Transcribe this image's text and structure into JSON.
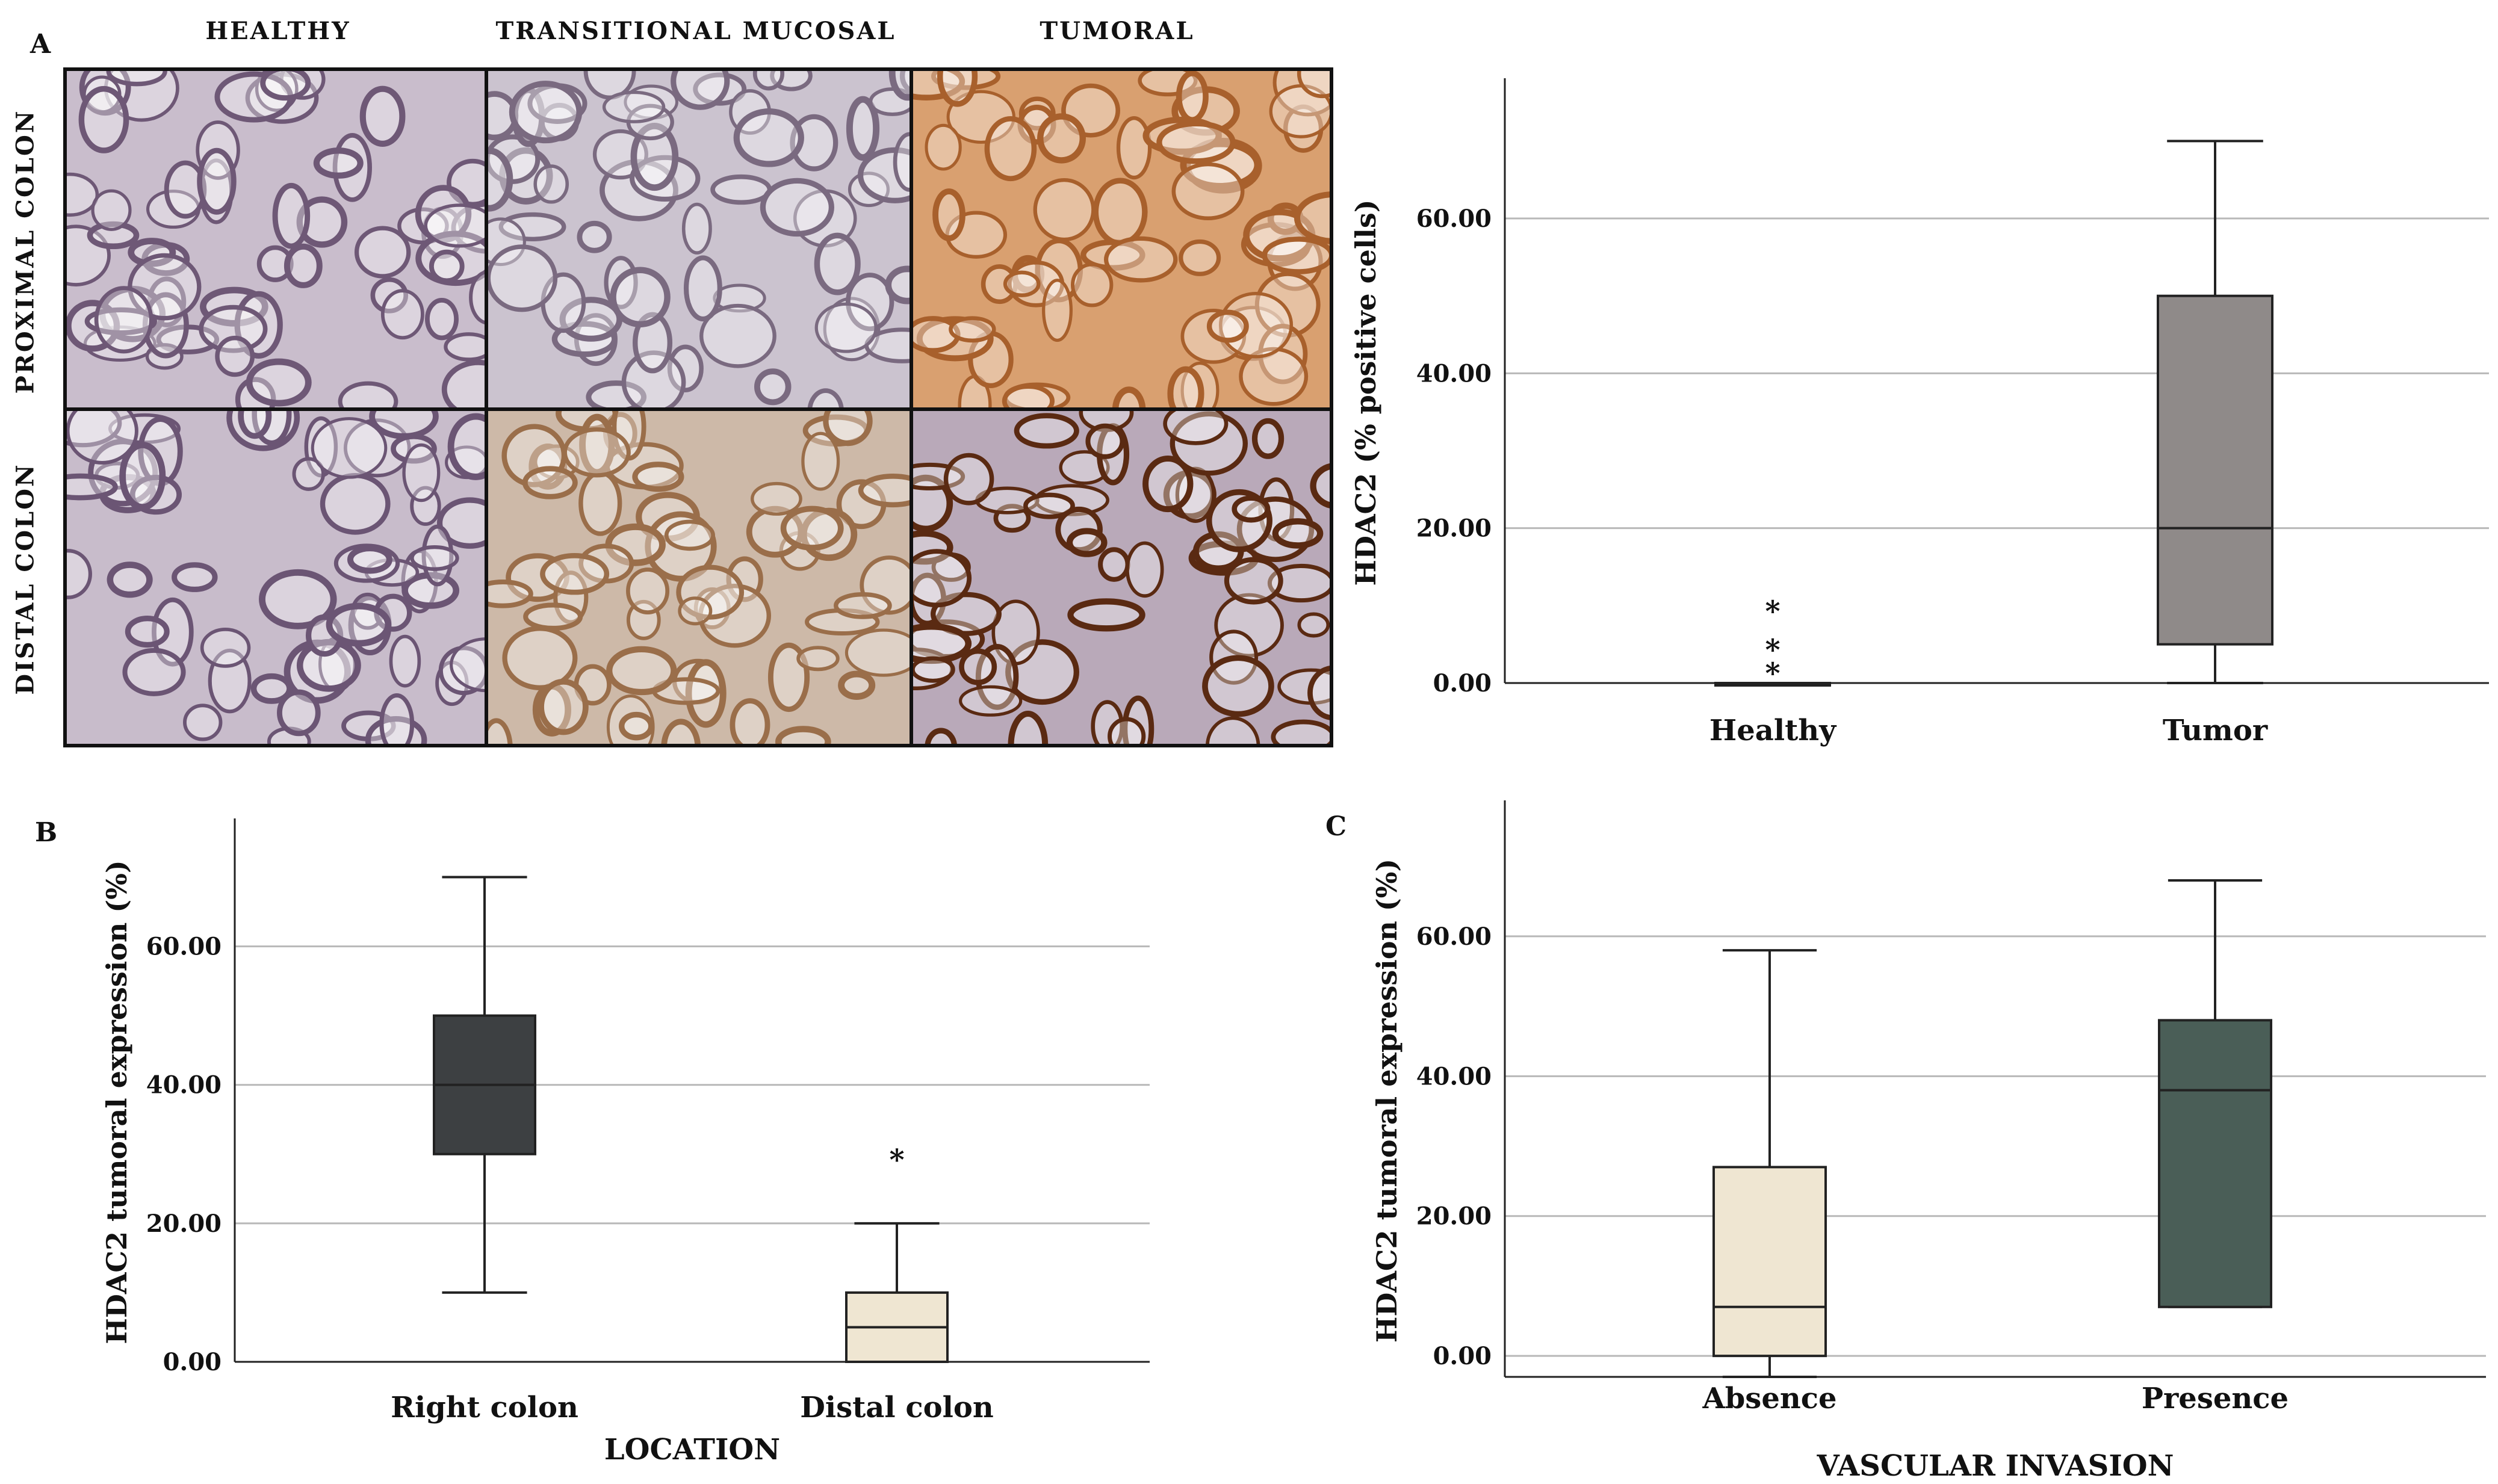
{
  "panel_letters": {
    "a": "A",
    "b": "B",
    "c": "C"
  },
  "micrographs": {
    "columns": [
      "HEALTHY",
      "TRANSITIONAL MUCOSAL",
      "TUMORAL"
    ],
    "rows": [
      "PROXIMAL COLON",
      "DISTAL COLON"
    ],
    "tiles": [
      {
        "row": 0,
        "col": 0,
        "tone": "#c9bdcc",
        "dark": "#6e5876"
      },
      {
        "row": 0,
        "col": 1,
        "tone": "#cbc3cf",
        "dark": "#7a6a80"
      },
      {
        "row": 0,
        "col": 2,
        "tone": "#d9a070",
        "dark": "#a8602c"
      },
      {
        "row": 1,
        "col": 0,
        "tone": "#c8bccb",
        "dark": "#6b5574"
      },
      {
        "row": 1,
        "col": 1,
        "tone": "#cdb9a8",
        "dark": "#9a6e4a"
      },
      {
        "row": 1,
        "col": 2,
        "tone": "#b9a9b9",
        "dark": "#5a2a12"
      }
    ]
  },
  "chart_data": [
    {
      "type": "box",
      "panel": "A",
      "xlabel": "",
      "ylabel": "HDAC2 (% positive cells)",
      "ylim": [
        0,
        75
      ],
      "yticks": [
        "0.00",
        "20.00",
        "40.00",
        "60.00"
      ],
      "yticks_values": [
        0,
        20,
        40,
        60
      ],
      "grid": true,
      "categories": [
        "Healthy",
        "Tumor"
      ],
      "boxes": [
        {
          "name": "Healthy",
          "min": 0,
          "q1": 0,
          "median": 0,
          "q3": 0,
          "max": 0,
          "outliers": [
            10,
            5,
            2
          ],
          "color": "#8a8585"
        },
        {
          "name": "Tumor",
          "min": 0,
          "q1": 5,
          "median": 20,
          "q3": 50,
          "max": 70,
          "outliers": [],
          "color": "#8f8a89"
        }
      ],
      "outlier_symbol": "*"
    },
    {
      "type": "box",
      "panel": "B",
      "xlabel": "LOCATION",
      "ylabel": "HDAC2 tumoral expression (%)",
      "ylim": [
        0,
        75
      ],
      "yticks": [
        "0.00",
        "20.00",
        "40.00",
        "60.00"
      ],
      "yticks_values": [
        0,
        20,
        40,
        60
      ],
      "grid": true,
      "categories": [
        "Right colon",
        "Distal colon"
      ],
      "boxes": [
        {
          "name": "Right colon",
          "min": 10,
          "q1": 30,
          "median": 40,
          "q3": 50,
          "max": 70,
          "outliers": [],
          "color": "#3d4042"
        },
        {
          "name": "Distal colon",
          "min": 0,
          "q1": 0,
          "median": 5,
          "q3": 10,
          "max": 20,
          "outliers": [
            30
          ],
          "color": "#efe6d2"
        }
      ],
      "outlier_symbol": "*"
    },
    {
      "type": "box",
      "panel": "C",
      "xlabel": "VASCULAR INVASION",
      "ylabel": "HDAC2 tumoral expression (%)",
      "ylim": [
        -3,
        76
      ],
      "yticks": [
        "0.00",
        "20.00",
        "40.00",
        "60.00"
      ],
      "yticks_values": [
        0,
        20,
        40,
        60
      ],
      "grid": true,
      "categories": [
        "Absence",
        "Presence"
      ],
      "boxes": [
        {
          "name": "Absence",
          "min": -3,
          "q1": 0,
          "median": 7,
          "q3": 27,
          "max": 58,
          "outliers": [],
          "color": "#efe6d2"
        },
        {
          "name": "Presence",
          "min": 7,
          "q1": 7,
          "median": 38,
          "q3": 48,
          "max": 68,
          "outliers": [],
          "color": "#4a5e57"
        }
      ],
      "outlier_symbol": "*"
    }
  ]
}
